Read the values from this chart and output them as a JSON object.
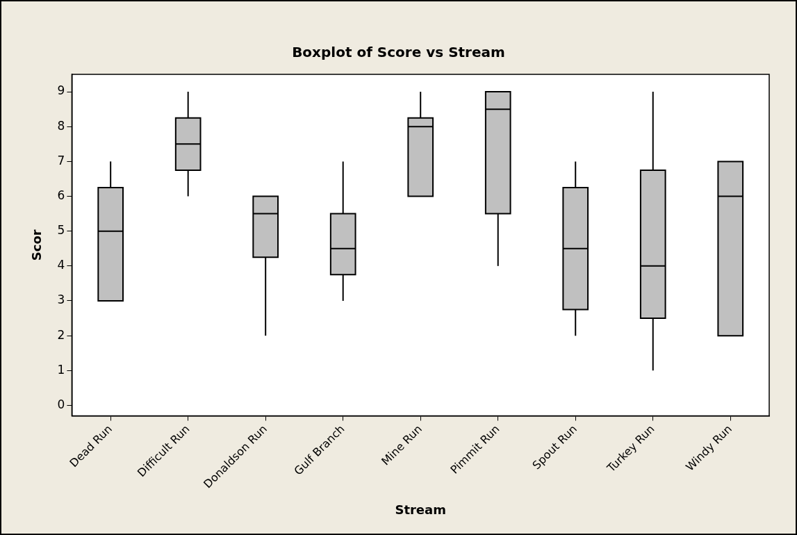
{
  "chart_data": {
    "type": "box",
    "title": "Boxplot of Score vs Stream",
    "xlabel": "Stream",
    "ylabel": "Scor",
    "categories": [
      "Dead Run",
      "Difficult Run",
      "Donaldson Run",
      "Gulf Branch",
      "Mine Run",
      "Pimmit Run",
      "Spout Run",
      "Turkey Run",
      "Windy Run"
    ],
    "color": "#c0c0c0",
    "boxes": [
      {
        "low": 3,
        "q1": 3,
        "median": 5,
        "q3": 6.25,
        "high": 7
      },
      {
        "low": 6,
        "q1": 6.75,
        "median": 7.5,
        "q3": 8.25,
        "high": 9
      },
      {
        "low": 2,
        "q1": 4.25,
        "median": 5.5,
        "q3": 6,
        "high": 6
      },
      {
        "low": 3,
        "q1": 3.75,
        "median": 4.5,
        "q3": 5.5,
        "high": 7
      },
      {
        "low": 6,
        "q1": 6,
        "median": 8,
        "q3": 8.25,
        "high": 9
      },
      {
        "low": 4,
        "q1": 5.5,
        "median": 8.5,
        "q3": 9,
        "high": 9
      },
      {
        "low": 2,
        "q1": 2.75,
        "median": 4.5,
        "q3": 6.25,
        "high": 7
      },
      {
        "low": 1,
        "q1": 2.5,
        "median": 4,
        "q3": 6.75,
        "high": 9
      },
      {
        "low": 2,
        "q1": 2,
        "median": 6,
        "q3": 7,
        "high": 7
      }
    ],
    "ylim": [
      -0.3,
      9.5
    ],
    "yticks": [
      0,
      1,
      2,
      3,
      4,
      5,
      6,
      7,
      8,
      9
    ],
    "grid": false
  }
}
